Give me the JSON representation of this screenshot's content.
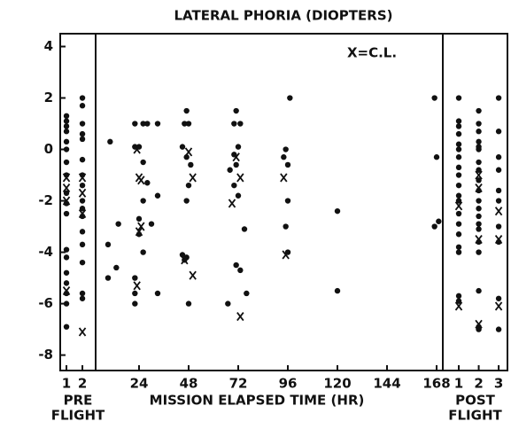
{
  "title": "LATERAL PHORIA (DIOPTERS)",
  "chart_data": [
    {
      "type": "scatter",
      "xlabel": [
        "PRE",
        "FLIGHT"
      ],
      "xlim": [
        0.61,
        2.83
      ],
      "xticks": [
        1,
        2
      ],
      "ylim": [
        -8.6,
        4.5
      ],
      "yticks": [
        4,
        2,
        0,
        -2,
        -4,
        -6,
        -8
      ],
      "series": [
        {
          "marker": "dot",
          "color": "#111",
          "x": [
            1,
            1,
            1,
            1,
            1,
            1,
            1,
            1,
            1,
            1,
            1,
            1,
            1,
            1,
            1,
            1,
            1,
            1,
            2,
            2,
            2,
            2,
            2,
            2,
            2,
            2,
            2,
            2,
            2,
            2,
            2,
            2,
            2,
            2
          ],
          "values": [
            1.3,
            1.1,
            0.9,
            0.7,
            0.3,
            0,
            -0.5,
            -1,
            -1.7,
            -2.1,
            -2.5,
            -3.9,
            -4.2,
            -4.8,
            -5.2,
            -5.6,
            -6,
            -6.9,
            2,
            1.7,
            1,
            0.6,
            0.4,
            -0.4,
            -1,
            -1.4,
            -2,
            -2.3,
            -2.6,
            -3.2,
            -3.7,
            -4.4,
            -5.6,
            -5.8
          ]
        },
        {
          "name": "X=C.L.",
          "marker": "cross",
          "color": "#111",
          "x": [
            1,
            1,
            1,
            1,
            2,
            2,
            2,
            2
          ],
          "values": [
            -1.1,
            -1.5,
            -2,
            -5.5,
            -1.1,
            -1.7,
            -2.5,
            -7.1
          ]
        }
      ]
    },
    {
      "type": "scatter",
      "xlabel": [
        "MISSION ELAPSED TIME (HR)"
      ],
      "xlim": [
        3,
        171
      ],
      "xticks": [
        24,
        48,
        72,
        96,
        120,
        144,
        168
      ],
      "ylim": [
        -8.6,
        4.5
      ],
      "series": [
        {
          "marker": "dot",
          "color": "#111",
          "x": [
            10,
            9,
            9,
            14,
            13,
            22,
            22,
            24,
            26,
            28,
            26,
            28,
            26,
            24,
            24,
            26,
            22,
            22,
            22,
            30,
            33,
            33,
            33,
            47,
            46,
            48,
            45,
            47,
            49,
            48,
            47,
            46,
            47,
            48,
            45,
            71,
            70,
            73,
            72,
            70,
            71,
            68,
            70,
            72,
            67,
            71,
            73,
            75,
            76,
            97,
            95,
            94,
            96,
            96,
            95,
            96,
            120,
            120,
            167,
            168,
            167,
            169
          ],
          "values": [
            0.3,
            -3.7,
            -5,
            -2.9,
            -4.6,
            1,
            0.1,
            0.1,
            1,
            1,
            -0.5,
            -1.3,
            -2,
            -2.7,
            -3.3,
            -4,
            -5,
            -5.6,
            -6,
            -2.9,
            1,
            -1.8,
            -5.6,
            1.5,
            1,
            1,
            0.1,
            -0.3,
            -0.6,
            -1.4,
            -2,
            -4.3,
            -4.2,
            -6,
            -4.1,
            1.5,
            1,
            1,
            0.1,
            -0.2,
            -0.6,
            -0.8,
            -1.4,
            -1.8,
            -6,
            -4.5,
            -4.7,
            -3.1,
            -5.6,
            2,
            0,
            -0.3,
            -0.6,
            -2,
            -3,
            -4,
            -2.4,
            -5.5,
            2,
            -0.3,
            -3,
            -2.8
          ]
        },
        {
          "marker": "cross",
          "color": "#111",
          "x": [
            23,
            24,
            25,
            25,
            24,
            23,
            48,
            50,
            46,
            50,
            69,
            71,
            73,
            73,
            94,
            95
          ],
          "values": [
            0,
            -1.1,
            -1.2,
            -3,
            -3.2,
            -5.3,
            -0.1,
            -1.1,
            -4.3,
            -4.9,
            -2.1,
            -0.3,
            -1.1,
            -6.5,
            -1.1,
            -4.1
          ]
        }
      ]
    },
    {
      "type": "scatter",
      "xlabel": [
        "POST",
        "FLIGHT"
      ],
      "xlim": [
        0.2,
        3.44
      ],
      "xticks": [
        1,
        2,
        3
      ],
      "ylim": [
        -8.6,
        4.5
      ],
      "series": [
        {
          "marker": "dot",
          "color": "#111",
          "x": [
            1,
            1,
            1,
            1,
            1,
            1,
            1,
            1,
            1,
            1,
            1,
            1,
            1,
            1,
            1,
            1,
            1,
            1,
            1,
            2,
            2,
            2,
            2,
            2,
            2,
            2,
            2,
            2,
            2,
            2,
            2,
            2,
            2,
            2,
            2,
            2,
            2,
            2,
            2,
            3,
            3,
            3,
            3,
            3,
            3,
            3,
            3,
            3,
            3
          ],
          "values": [
            2,
            1.1,
            0.9,
            0.6,
            0.2,
            0,
            -0.3,
            -0.7,
            -1,
            -1.4,
            -1.8,
            -2,
            -2.5,
            -2.9,
            -3.3,
            -3.8,
            -4,
            -5.7,
            -5.9,
            1.5,
            1,
            0.7,
            0.3,
            0.1,
            0,
            -0.5,
            -0.8,
            -1.2,
            -1.6,
            -2,
            -2.3,
            -2.6,
            -2.9,
            -3.1,
            -3.6,
            -4,
            -5.5,
            -6.9,
            -7,
            2,
            0.7,
            -0.3,
            -0.8,
            -1.6,
            -2,
            -3,
            -3.6,
            -5.8,
            -7
          ]
        },
        {
          "marker": "cross",
          "color": "#111",
          "x": [
            1,
            1,
            2,
            2,
            2,
            2,
            3,
            3,
            3
          ],
          "values": [
            -2.2,
            -6.1,
            -1,
            -1.5,
            -3.5,
            -6.8,
            -2.4,
            -3.5,
            -6.1
          ]
        }
      ]
    }
  ]
}
